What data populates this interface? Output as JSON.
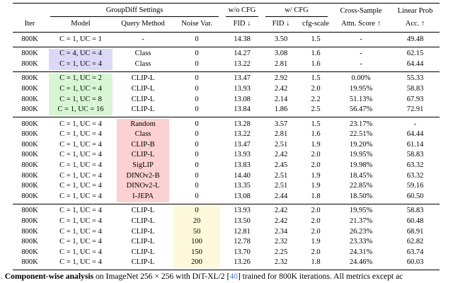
{
  "colors": {
    "hl_lavender": "#dcd8f7",
    "hl_green": "#d8f6d4",
    "hl_pink": "#fbd1d1",
    "hl_yellow": "#fdf9da",
    "cite_blue": "#4a7fce"
  },
  "table": {
    "group_headers": {
      "groupdiff": "GroupDiff Settings",
      "wo_cfg": "w/o CFG",
      "w_cfg": "w/ CFG",
      "cross_sample": "Cross-Sample",
      "linear_prob": "Linear Prob"
    },
    "col_headers": {
      "iter": "Iter",
      "model": "Model",
      "query": "Query Method",
      "noise": "Noise Var.",
      "fid_wo": "FID ↓",
      "fid_w": "FID ↓",
      "cfg": "cfg-scale",
      "attn": "Attn. Score ↑",
      "acc": "Acc. ↑"
    },
    "sections": [
      {
        "rows": [
          {
            "iter": "800K",
            "model": "C = 1, UC = 1",
            "query": "-",
            "noise": "0",
            "fid_wo": "14.38",
            "fid_w": "3.50",
            "cfg": "1.5",
            "attn": "-",
            "acc": "49.48",
            "hl": null
          }
        ]
      },
      {
        "rows": [
          {
            "iter": "800K",
            "model": "C = 4, UC = 4",
            "query": "Class",
            "noise": "0",
            "fid_wo": "14.27",
            "fid_w": "3.08",
            "cfg": "1.6",
            "attn": "-",
            "acc": "62.15",
            "hl": {
              "model": "lavender"
            }
          },
          {
            "iter": "800K",
            "model": "C = 1, UC = 4",
            "query": "Class",
            "noise": "0",
            "fid_wo": "13.22",
            "fid_w": "2.81",
            "cfg": "1.6",
            "attn": "-",
            "acc": "64.44",
            "hl": {
              "model": "lavender"
            }
          }
        ]
      },
      {
        "rows": [
          {
            "iter": "800K",
            "model": "C = 1, UC = 2",
            "query": "CLIP-L",
            "noise": "0",
            "fid_wo": "13.47",
            "fid_w": "2.92",
            "cfg": "1.5",
            "attn": "0.00%",
            "acc": "55.33",
            "hl": {
              "model": "green"
            }
          },
          {
            "iter": "800K",
            "model": "C = 1, UC = 4",
            "query": "CLIP-L",
            "noise": "0",
            "fid_wo": "13.93",
            "fid_w": "2.42",
            "cfg": "2.0",
            "attn": "19.95%",
            "acc": "58.83",
            "hl": {
              "model": "green"
            }
          },
          {
            "iter": "800K",
            "model": "C = 1, UC = 8",
            "query": "CLIP-L",
            "noise": "0",
            "fid_wo": "13.08",
            "fid_w": "2.14",
            "cfg": "2.2",
            "attn": "51.13%",
            "acc": "67.93",
            "hl": {
              "model": "green"
            }
          },
          {
            "iter": "800K",
            "model": "C = 1, UC = 16",
            "query": "CLIP-L",
            "noise": "0",
            "fid_wo": "13.84",
            "fid_w": "1.86",
            "cfg": "2.5",
            "attn": "56.47%",
            "acc": "72.91",
            "hl": {
              "model": "green"
            }
          }
        ]
      },
      {
        "rows": [
          {
            "iter": "800K",
            "model": "C = 1, UC = 4",
            "query": "Random",
            "noise": "0",
            "fid_wo": "13.28",
            "fid_w": "3.57",
            "cfg": "1.5",
            "attn": "23.17%",
            "acc": "-",
            "hl": {
              "query": "pink"
            }
          },
          {
            "iter": "800K",
            "model": "C = 1, UC = 4",
            "query": "Class",
            "noise": "0",
            "fid_wo": "13.22",
            "fid_w": "2.81",
            "cfg": "1.6",
            "attn": "22.51%",
            "acc": "64.44",
            "hl": {
              "query": "pink"
            }
          },
          {
            "iter": "800K",
            "model": "C = 1, UC = 4",
            "query": "CLIP-B",
            "noise": "0",
            "fid_wo": "13.47",
            "fid_w": "2.51",
            "cfg": "1.9",
            "attn": "19.20%",
            "acc": "61.14",
            "hl": {
              "query": "pink"
            }
          },
          {
            "iter": "800K",
            "model": "C = 1, UC = 4",
            "query": "CLIP-L",
            "noise": "0",
            "fid_wo": "13.93",
            "fid_w": "2.42",
            "cfg": "2.0",
            "attn": "19.95%",
            "acc": "58.83",
            "hl": {
              "query": "pink"
            }
          },
          {
            "iter": "800K",
            "model": "C = 1, UC = 4",
            "query": "SigLIP",
            "noise": "0",
            "fid_wo": "13.83",
            "fid_w": "2.45",
            "cfg": "2.0",
            "attn": "19.98%",
            "acc": "63.32",
            "hl": {
              "query": "pink"
            }
          },
          {
            "iter": "800K",
            "model": "C = 1, UC = 4",
            "query": "DINOv2-B",
            "noise": "0",
            "fid_wo": "14.40",
            "fid_w": "2.51",
            "cfg": "1.9",
            "attn": "18.45%",
            "acc": "63.32",
            "hl": {
              "query": "pink"
            }
          },
          {
            "iter": "800K",
            "model": "C = 1, UC = 4",
            "query": "DINOv2-L",
            "noise": "0",
            "fid_wo": "13.35",
            "fid_w": "2.51",
            "cfg": "1.9",
            "attn": "22.85%",
            "acc": "59.16",
            "hl": {
              "query": "pink"
            }
          },
          {
            "iter": "800K",
            "model": "C = 1, UC = 4",
            "query": "I-JEPA",
            "noise": "0",
            "fid_wo": "13.08",
            "fid_w": "2.44",
            "cfg": "1.8",
            "attn": "18.50%",
            "acc": "60.50",
            "hl": {
              "query": "pink"
            }
          }
        ]
      },
      {
        "rows": [
          {
            "iter": "800K",
            "model": "C = 1, UC = 4",
            "query": "CLIP-L",
            "noise": "0",
            "fid_wo": "13.93",
            "fid_w": "2.42",
            "cfg": "2.0",
            "attn": "19.95%",
            "acc": "58.83",
            "hl": {
              "noise": "yellow"
            }
          },
          {
            "iter": "800K",
            "model": "C = 1, UC = 4",
            "query": "CLIP-L",
            "noise": "20",
            "fid_wo": "13.50",
            "fid_w": "2.42",
            "cfg": "2.0",
            "attn": "21.37%",
            "acc": "60.48",
            "hl": {
              "noise": "yellow"
            }
          },
          {
            "iter": "800K",
            "model": "C = 1, UC = 4",
            "query": "CLIP-L",
            "noise": "50",
            "fid_wo": "12.81",
            "fid_w": "2.34",
            "cfg": "2.0",
            "attn": "26.23%",
            "acc": "68.91",
            "hl": {
              "noise": "yellow"
            }
          },
          {
            "iter": "800K",
            "model": "C = 1, UC = 4",
            "query": "CLIP-L",
            "noise": "100",
            "fid_wo": "12.78",
            "fid_w": "2.32",
            "cfg": "1.9",
            "attn": "23.33%",
            "acc": "62.82",
            "hl": {
              "noise": "yellow"
            }
          },
          {
            "iter": "800K",
            "model": "C = 1, UC = 4",
            "query": "CLIP-L",
            "noise": "150",
            "fid_wo": "13.70",
            "fid_w": "2.25",
            "cfg": "2.0",
            "attn": "24.31%",
            "acc": "63.74",
            "hl": {
              "noise": "yellow"
            }
          },
          {
            "iter": "800K",
            "model": "C = 1, UC = 4",
            "query": "CLIP-L",
            "noise": "200",
            "fid_wo": "13.26",
            "fid_w": "2.32",
            "cfg": "1.8",
            "attn": "24.46%",
            "acc": "60.03",
            "hl": {
              "noise": "yellow"
            }
          }
        ]
      }
    ]
  },
  "caption": {
    "prefix": ". ",
    "bold": "Component-wise analysis",
    "middle": " on ImageNet 256 × 256 with DiT-XL/2 [",
    "cite": "40",
    "tail": "] trained for 800K iterations. All metrics except ac"
  }
}
